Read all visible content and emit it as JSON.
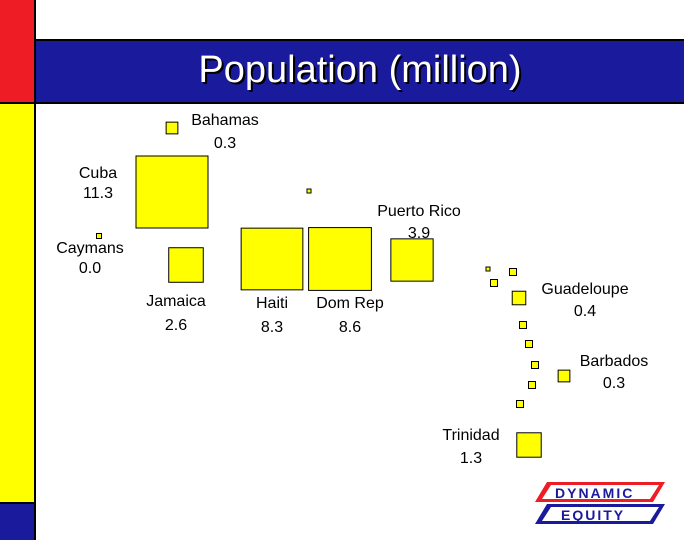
{
  "title": "Population (million)",
  "colors": {
    "red": "#ee1c24",
    "yellow": "#ffff00",
    "blue": "#1a1a9c",
    "box": "#ffff00"
  },
  "logo": {
    "line1": "DYNAMIC",
    "line2": "EQUITY"
  },
  "chart_data": {
    "type": "proportional-area-boxes",
    "title": "Population (million)",
    "unit": "million",
    "items": [
      {
        "name": "Bahamas",
        "value": 0.3
      },
      {
        "name": "Cuba",
        "value": 11.3
      },
      {
        "name": "Caymans",
        "value": 0.0
      },
      {
        "name": "Jamaica",
        "value": 2.6
      },
      {
        "name": "Haiti",
        "value": 8.3
      },
      {
        "name": "Dom Rep",
        "value": 8.6
      },
      {
        "name": "Puerto Rico",
        "value": 3.9
      },
      {
        "name": "Guadeloupe",
        "value": 0.4
      },
      {
        "name": "Barbados",
        "value": 0.3
      },
      {
        "name": "Trinidad",
        "value": 1.3
      }
    ],
    "value_labels": [
      "0.3",
      "11.3",
      "0.0",
      "2.6",
      "8.3",
      "8.6",
      "3.9",
      "0.4",
      "0.3",
      "1.3"
    ]
  }
}
